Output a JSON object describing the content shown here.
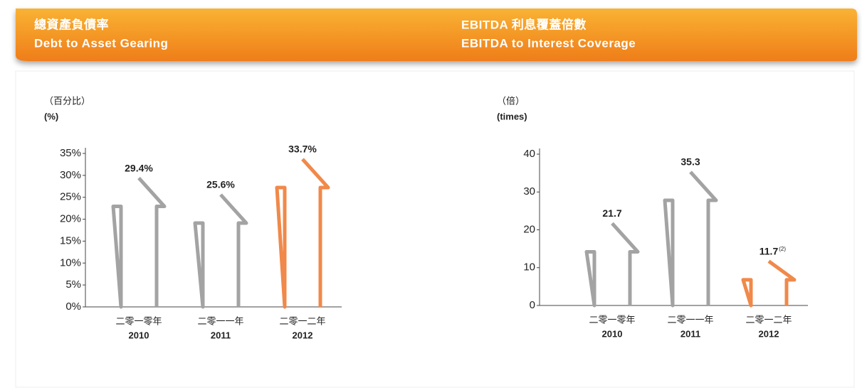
{
  "chart_data": [
    {
      "type": "bar",
      "title_zh": "總資產負債率",
      "title": "Debt to Asset Gearing",
      "unit_zh": "（百分比）",
      "unit": "(%)",
      "categories_zh": [
        "二零一零年",
        "二零一一年",
        "二零一二年"
      ],
      "categories": [
        "2010",
        "2011",
        "2012"
      ],
      "values": [
        29.4,
        25.6,
        33.7
      ],
      "value_labels": [
        "29.4%",
        "25.6%",
        "33.7%"
      ],
      "colors": [
        "#a3a3a3",
        "#a3a3a3",
        "#f0894a"
      ],
      "ylim": [
        0,
        35
      ],
      "yticks": [
        {
          "value": 0,
          "label": "0%"
        },
        {
          "value": 5,
          "label": "5%"
        },
        {
          "value": 10,
          "label": "10%"
        },
        {
          "value": 15,
          "label": "15%"
        },
        {
          "value": 20,
          "label": "20%"
        },
        {
          "value": 25,
          "label": "25%"
        },
        {
          "value": 30,
          "label": "30%"
        },
        {
          "value": 35,
          "label": "35%"
        }
      ]
    },
    {
      "type": "bar",
      "title_zh": "EBITDA 利息覆蓋倍數",
      "title": "EBITDA to Interest Coverage",
      "unit_zh": "（倍）",
      "unit": "(times)",
      "categories_zh": [
        "二零一零年",
        "二零一一年",
        "二零一二年"
      ],
      "categories": [
        "2010",
        "2011",
        "2012"
      ],
      "values": [
        21.7,
        35.3,
        11.7
      ],
      "value_label_notes": [
        null,
        null,
        "(2)"
      ],
      "colors": [
        "#a3a3a3",
        "#a3a3a3",
        "#f0894a"
      ],
      "ylim": [
        0,
        40
      ],
      "yticks": [
        0,
        10,
        20,
        30,
        40
      ]
    }
  ]
}
